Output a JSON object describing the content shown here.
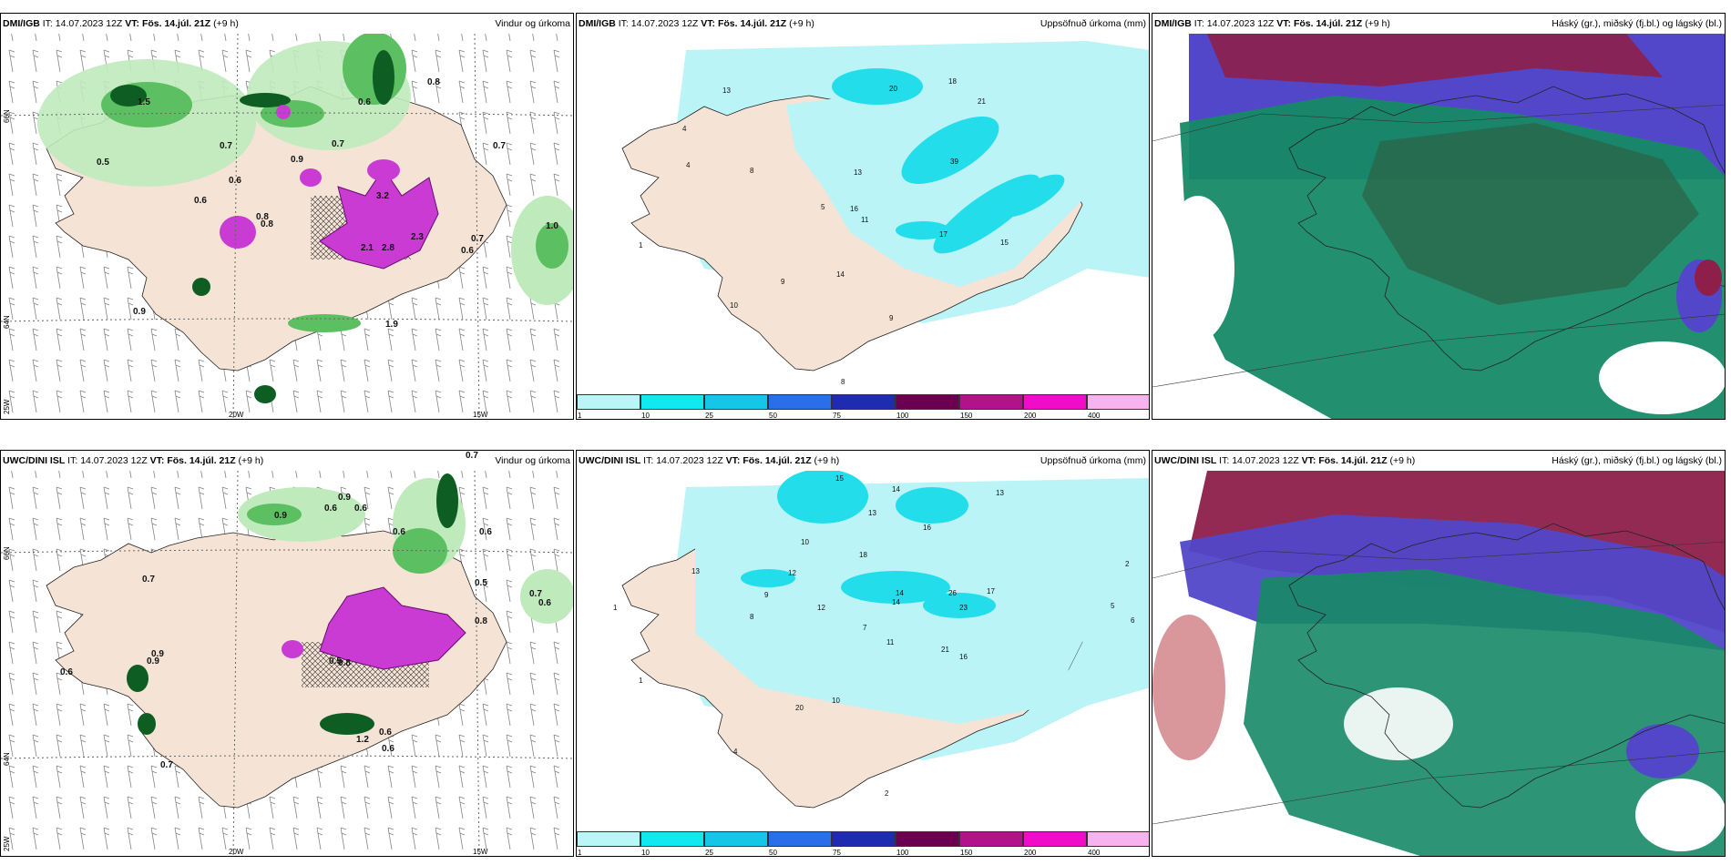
{
  "rows": [
    {
      "panels": [
        {
          "model": "DMI/IGB",
          "it_label": "IT:",
          "it_value": "14.07.2023 12Z",
          "vt_label": "VT:",
          "vt_value": "Fös. 14.júl. 21Z",
          "lead": "(+9 h)",
          "title": "Vindur og úrkoma",
          "lon_labels": [
            "20W",
            "15W"
          ],
          "lat_labels": [
            "66N",
            "64N",
            "25W"
          ],
          "values": [
            "0.5",
            "0.7",
            "0.6",
            "0.9",
            "0.7",
            "0.6",
            "0.8",
            "0.8",
            "0.7",
            "0.9",
            "1.0",
            "0.7",
            "0.6",
            "1.9",
            "3.2",
            "2.3",
            "2.8",
            "2.1",
            "1.5",
            "0.6",
            "0.8"
          ]
        },
        {
          "model": "DMI/IGB",
          "it_label": "IT:",
          "it_value": "14.07.2023 12Z",
          "vt_label": "VT:",
          "vt_value": "Fös. 14.júl. 21Z",
          "lead": "(+9 h)",
          "title": "Uppsöfnuð úrkoma (mm)",
          "values": [
            "18",
            "20",
            "21",
            "13",
            "39",
            "17",
            "16",
            "13",
            "15",
            "5",
            "11",
            "8",
            "4",
            "9",
            "14",
            "10",
            "9",
            "8",
            "1",
            "4"
          ]
        },
        {
          "model": "DMI/IGB",
          "it_label": "IT:",
          "it_value": "14.07.2023 12Z",
          "vt_label": "VT:",
          "vt_value": "Fös. 14.júl. 21Z",
          "lead": "(+9 h)",
          "title": "Háský (gr.), miðský (fj.bl.) og lágský (bl.)"
        }
      ]
    },
    {
      "panels": [
        {
          "model": "UWC/DINI ISL",
          "it_label": "IT:",
          "it_value": "14.07.2023 12Z",
          "vt_label": "VT:",
          "vt_value": "Fös. 14.júl. 21Z",
          "lead": "(+9 h)",
          "title": "Vindur og úrkoma",
          "lon_labels": [
            "20W",
            "15W"
          ],
          "lat_labels": [
            "66N",
            "64N",
            "25W"
          ],
          "values": [
            "0.9",
            "0.6",
            "0.6",
            "0.9",
            "0.7",
            "0.7",
            "0.9",
            "0.6",
            "0.7",
            "0.6",
            "0.6",
            "0.5",
            "0.8",
            "0.6",
            "0.6",
            "0.7",
            "0.6",
            "1.2",
            "0.9",
            "0.8",
            "0.5"
          ]
        },
        {
          "model": "UWC/DINI ISL",
          "it_label": "IT:",
          "it_value": "14.07.2023 12Z",
          "vt_label": "VT:",
          "vt_value": "Fös. 14.júl. 21Z",
          "lead": "(+9 h)",
          "title": "Uppsöfnuð úrkoma (mm)",
          "values": [
            "15",
            "14",
            "13",
            "16",
            "13",
            "10",
            "12",
            "18",
            "14",
            "26",
            "23",
            "17",
            "21",
            "16",
            "12",
            "8",
            "9",
            "11",
            "7",
            "20",
            "10",
            "14",
            "4",
            "2",
            "1",
            "5",
            "6",
            "13",
            "2",
            "1"
          ]
        },
        {
          "model": "UWC/DINI ISL",
          "it_label": "IT:",
          "it_value": "14.07.2023 12Z",
          "vt_label": "VT:",
          "vt_value": "Fös. 14.júl. 21Z",
          "lead": "(+9 h)",
          "title": "Háský (gr.), miðský (fj.bl.) og lágský (bl.)"
        }
      ]
    }
  ],
  "colorbar": {
    "ticks": [
      "1",
      "10",
      "25",
      "50",
      "75",
      "100",
      "150",
      "200",
      "400"
    ],
    "colors": [
      "#b8f6f8",
      "#12e8ef",
      "#16c6e6",
      "#2b6ee8",
      "#1e2cb0",
      "#6a0050",
      "#b0138c",
      "#f00cc8",
      "#f7b2ef"
    ]
  },
  "colors": {
    "land": "#f5e4d6",
    "light_green": "#bfeabc",
    "mid_green": "#5cbf62",
    "dark_green": "#0e5e24",
    "purple": "#c93bd3",
    "cyan_light": "#baf4f7",
    "cyan": "#23ddeb",
    "high_cloud": "#5247c8",
    "mid_cloud": "#168a66",
    "low_cloud": "#8d1f4a"
  }
}
